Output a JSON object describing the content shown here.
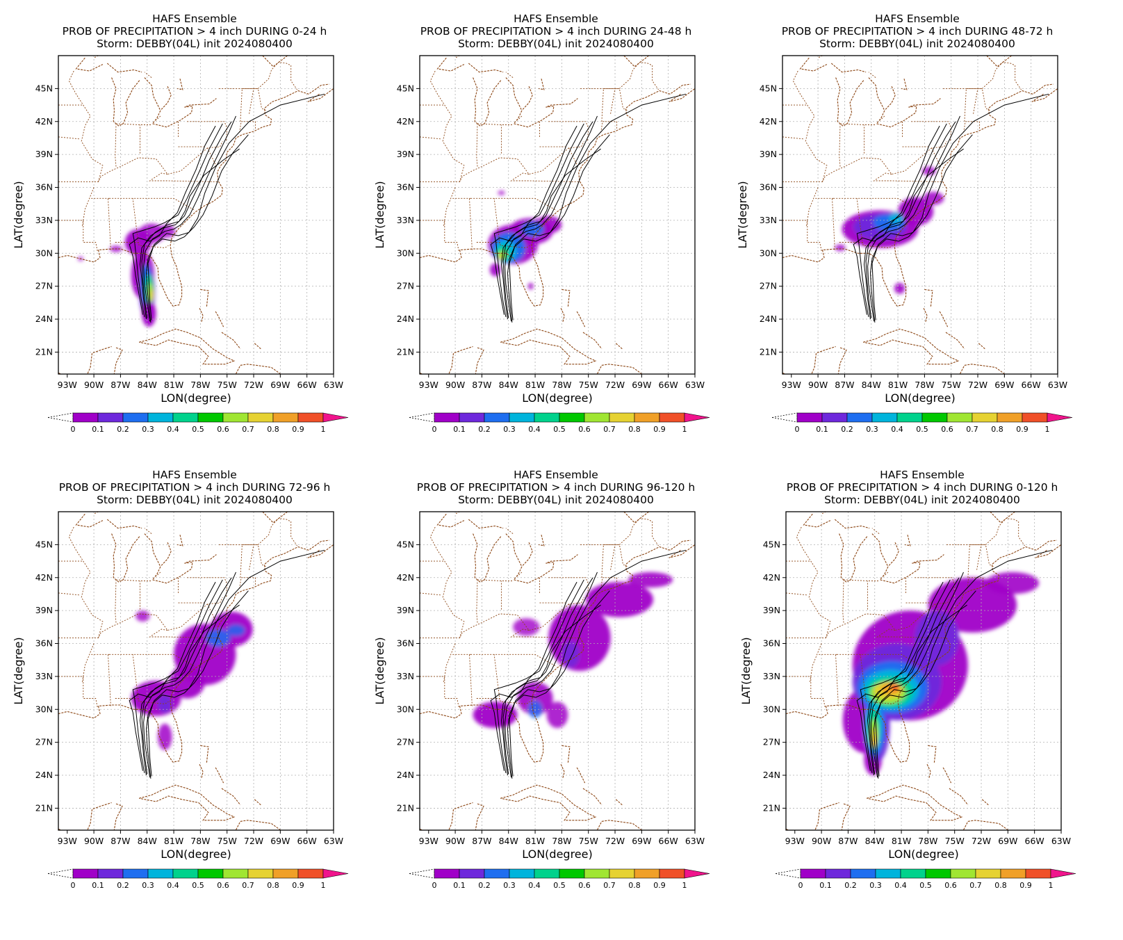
{
  "common": {
    "header": "HAFS Ensemble",
    "storm_line": "Storm: DEBBY(04L) init 2024080400",
    "xlabel": "LON(degree)",
    "ylabel": "LAT(degree)",
    "lon_ticks": [
      "93W",
      "90W",
      "87W",
      "84W",
      "81W",
      "78W",
      "75W",
      "72W",
      "69W",
      "66W",
      "63W"
    ],
    "lat_ticks": [
      "45N",
      "42N",
      "39N",
      "36N",
      "33N",
      "30N",
      "27N",
      "24N",
      "21N"
    ],
    "colorbar_ticks": [
      "0",
      "0.1",
      "0.2",
      "0.3",
      "0.4",
      "0.5",
      "0.6",
      "0.7",
      "0.8",
      "0.9",
      "1"
    ],
    "colorbar_colors": [
      "#a000c8",
      "#6e28dc",
      "#1e6ef0",
      "#00b4dc",
      "#00d28c",
      "#00c800",
      "#a0e632",
      "#e6d232",
      "#f0a028",
      "#f05028"
    ],
    "colorbar_overflow_color": "#f0148c",
    "coastline_color": "#8b4513",
    "track_color": "#000000"
  },
  "chart_data": [
    {
      "type": "map",
      "title": "PROB OF PRECIPITATION > 4 inch DURING  0-24 h",
      "period": "0-24 h",
      "max_probability": 0.7,
      "main_area": "Florida west coast / Big Bend"
    },
    {
      "type": "map",
      "title": "PROB OF PRECIPITATION > 4 inch DURING 24-48 h",
      "period": "24-48 h",
      "max_probability": 0.7,
      "main_area": "Florida Big Bend to southern Georgia"
    },
    {
      "type": "map",
      "title": "PROB OF PRECIPITATION > 4 inch DURING 48-72 h",
      "period": "48-72 h",
      "max_probability": 0.3,
      "main_area": "Georgia and South Carolina"
    },
    {
      "type": "map",
      "title": "PROB OF PRECIPITATION > 4 inch DURING 72-96 h",
      "period": "72-96 h",
      "max_probability": 0.2,
      "main_area": "Carolinas to Virginia"
    },
    {
      "type": "map",
      "title": "PROB OF PRECIPITATION > 4 inch DURING 96-120 h",
      "period": "96-120 h",
      "max_probability": 0.2,
      "main_area": "Mid-Atlantic to New England"
    },
    {
      "type": "map",
      "title": "PROB OF PRECIPITATION > 4 inch DURING 0-120 h",
      "period": "0-120 h",
      "max_probability": 0.9,
      "main_area": "Florida to New England, peak over Georgia and South Carolina"
    }
  ]
}
